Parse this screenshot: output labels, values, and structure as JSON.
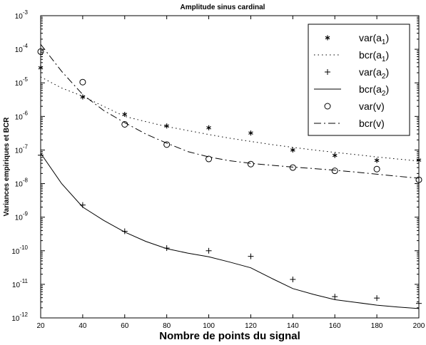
{
  "chart_data": {
    "type": "line",
    "title": "Amplitude sinus cardinal",
    "xlabel": "Nombre de points du signal",
    "ylabel": "Variances empiriques et BCR",
    "xlim": [
      20,
      200
    ],
    "ylim": [
      1e-12,
      0.001
    ],
    "yscale": "log",
    "x_ticks": [
      "20",
      "40",
      "60",
      "80",
      "100",
      "120",
      "140",
      "160",
      "180",
      "200"
    ],
    "y_ticks": [
      {
        "base": "10",
        "exp": "-12"
      },
      {
        "base": "10",
        "exp": "-11"
      },
      {
        "base": "10",
        "exp": "-10"
      },
      {
        "base": "10",
        "exp": "-9"
      },
      {
        "base": "10",
        "exp": "-8"
      },
      {
        "base": "10",
        "exp": "-7"
      },
      {
        "base": "10",
        "exp": "-6"
      },
      {
        "base": "10",
        "exp": "-5"
      },
      {
        "base": "10",
        "exp": "-4"
      },
      {
        "base": "10",
        "exp": "-3"
      }
    ],
    "grid": false,
    "legend_position": "top-right",
    "series": [
      {
        "name": "var(a1)",
        "legend_main": "var(a",
        "legend_sub": "1",
        "legend_tail": ")",
        "marker": "star",
        "line": "none",
        "x": [
          20,
          40,
          60,
          80,
          100,
          120,
          140,
          160,
          180,
          200
        ],
        "y": [
          2.8e-05,
          3.8e-06,
          1.15e-06,
          5.2e-07,
          4.6e-07,
          3.2e-07,
          1e-07,
          6.9e-08,
          4.9e-08,
          5e-08
        ]
      },
      {
        "name": "bcr(a1)",
        "legend_main": "bcr(a",
        "legend_sub": "1",
        "legend_tail": ")",
        "marker": "none",
        "line": "dotted",
        "x": [
          20,
          30,
          40,
          50,
          60,
          70,
          80,
          90,
          100,
          110,
          120,
          130,
          140,
          150,
          160,
          170,
          180,
          190,
          200
        ],
        "y": [
          1.5e-05,
          7e-06,
          4e-06,
          2e-06,
          1e-06,
          7e-07,
          5e-07,
          3.8e-07,
          2.9e-07,
          2.25e-07,
          1.8e-07,
          1.45e-07,
          1.2e-07,
          1e-07,
          8.5e-08,
          7.3e-08,
          6.2e-08,
          5.4e-08,
          4.7e-08
        ]
      },
      {
        "name": "var(a2)",
        "legend_main": "var(a",
        "legend_sub": "2",
        "legend_tail": ")",
        "marker": "plus",
        "line": "none",
        "x": [
          20,
          40,
          60,
          80,
          100,
          120,
          140,
          160,
          180,
          200
        ],
        "y": [
          7e-08,
          2.3e-09,
          3.8e-10,
          1.2e-10,
          1e-10,
          6.8e-11,
          1.4e-11,
          4.3e-12,
          3.9e-12,
          2.7e-12
        ]
      },
      {
        "name": "bcr(a2)",
        "legend_main": "bcr(a",
        "legend_sub": "2",
        "legend_tail": ")",
        "marker": "none",
        "line": "solid",
        "x": [
          20,
          30,
          40,
          50,
          60,
          70,
          80,
          90,
          100,
          110,
          120,
          130,
          140,
          150,
          160,
          170,
          180,
          190,
          200
        ],
        "y": [
          8e-08,
          1e-08,
          2e-09,
          8e-10,
          3.6e-10,
          1.9e-10,
          1.15e-10,
          8.5e-11,
          6.6e-11,
          4.6e-11,
          3.1e-11,
          1.5e-11,
          7.5e-12,
          5e-12,
          3.5e-12,
          2.9e-12,
          2.4e-12,
          2.1e-12,
          1.9e-12
        ]
      },
      {
        "name": "var(v)",
        "legend_main": "var(v)",
        "legend_sub": "",
        "legend_tail": "",
        "marker": "circle",
        "line": "none",
        "x": [
          20,
          40,
          60,
          80,
          100,
          120,
          140,
          160,
          180,
          200
        ],
        "y": [
          8.5e-05,
          1.05e-05,
          5.8e-07,
          1.45e-07,
          5.4e-08,
          3.8e-08,
          3e-08,
          2.4e-08,
          2.7e-08,
          1.3e-08
        ]
      },
      {
        "name": "bcr(v)",
        "legend_main": "bcr(v)",
        "legend_sub": "",
        "legend_tail": "",
        "marker": "none",
        "line": "dashdot",
        "x": [
          20,
          30,
          40,
          50,
          60,
          70,
          80,
          90,
          100,
          110,
          120,
          130,
          140,
          150,
          160,
          170,
          180,
          190,
          200
        ],
        "y": [
          0.00014,
          2.2e-05,
          4.5e-06,
          1.5e-06,
          6.5e-07,
          3e-07,
          1.6e-07,
          9e-08,
          6.2e-08,
          4.8e-08,
          4e-08,
          3.5e-08,
          3.1e-08,
          2.8e-08,
          2.5e-08,
          2.2e-08,
          1.9e-08,
          1.65e-08,
          1.45e-08
        ]
      }
    ]
  }
}
